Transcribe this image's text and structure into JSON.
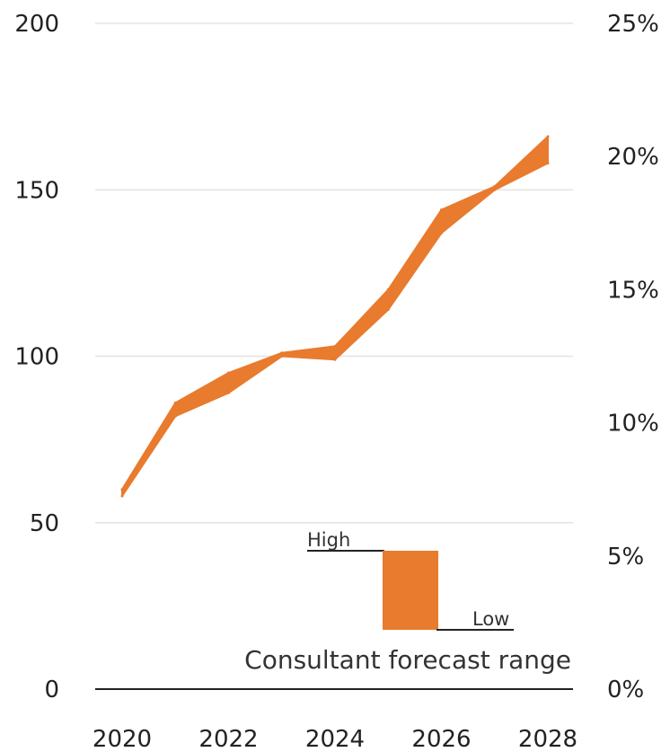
{
  "chart_data": {
    "type": "area",
    "x": [
      2020,
      2021,
      2022,
      2023,
      2024,
      2025,
      2026,
      2027,
      2028
    ],
    "series": [
      {
        "name": "High",
        "values": [
          60,
          86,
          95,
          101,
          103,
          120,
          144,
          151,
          166
        ]
      },
      {
        "name": "Low",
        "values": [
          58,
          82,
          89,
          100,
          99,
          114,
          137,
          150,
          158
        ]
      }
    ],
    "ylim": [
      0,
      200
    ],
    "y_ticks": [
      0,
      50,
      100,
      150,
      200
    ],
    "y2_ticks": [
      "0%",
      "5%",
      "10%",
      "15%",
      "20%",
      "25%"
    ],
    "x_ticks": [
      2020,
      2022,
      2024,
      2026,
      2028
    ],
    "grid": true,
    "fill_color": "#E87B2E",
    "legend": {
      "high_label": "High",
      "low_label": "Low",
      "caption": "Consultant forecast range"
    }
  }
}
